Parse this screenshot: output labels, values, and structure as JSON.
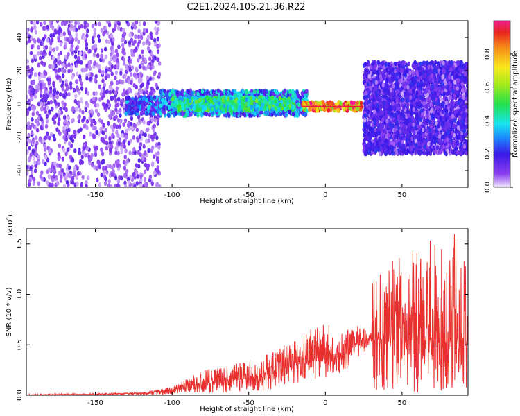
{
  "title": "C2E1.2024.105.21.36.R22",
  "chart_data": [
    {
      "type": "heatmap",
      "xlabel": "Height of straight line (km)",
      "ylabel": "Frequency (Hz)",
      "xlim": [
        -195,
        93
      ],
      "ylim": [
        -50,
        50
      ],
      "xticks": [
        -150,
        -100,
        -50,
        0,
        50
      ],
      "yticks": [
        -40,
        -20,
        0,
        20,
        40
      ],
      "colorbar": {
        "label": "Normalized spectral amplitude",
        "range": [
          0,
          1
        ],
        "ticks": [
          0.0,
          0.2,
          0.4,
          0.6,
          0.8
        ],
        "tick_labels": [
          "0.0",
          "0.2",
          "0.4",
          "0.6",
          "0.8"
        ]
      },
      "regions": [
        {
          "x": [
            -195,
            -108
          ],
          "freq_band": [
            -50,
            50
          ],
          "amplitude": 0.12
        },
        {
          "x": [
            -130,
            -108
          ],
          "freq_band": [
            -6,
            4
          ],
          "amplitude": 0.3
        },
        {
          "x": [
            -108,
            -12
          ],
          "freq_band": [
            -7,
            8
          ],
          "amplitude": 0.35
        },
        {
          "x": [
            -100,
            -20
          ],
          "freq_band": [
            -4,
            4
          ],
          "amplitude": 0.5
        },
        {
          "x": [
            -15,
            25
          ],
          "freq_band": [
            -4,
            1
          ],
          "amplitude": 0.9
        },
        {
          "x": [
            25,
            93
          ],
          "freq_band": [
            -30,
            25
          ],
          "amplitude": 0.2
        }
      ]
    },
    {
      "type": "line",
      "xlabel": "Height of straight line (km)",
      "ylabel": "SNR (10 * v/v)",
      "y_multiplier": "(x10",
      "y_multiplier_exp": "4",
      "y_multiplier_close": ")",
      "xlim": [
        -195,
        93
      ],
      "ylim": [
        0,
        1.65
      ],
      "xticks": [
        -150,
        -100,
        -50,
        0,
        50
      ],
      "yticks": [
        0.0,
        0.5,
        1.0,
        1.5
      ],
      "ytick_labels": [
        "0.0",
        "0.5",
        "1.0",
        "1.5"
      ],
      "series": [
        {
          "color": "#e8302e",
          "x": [
            -195,
            -150,
            -120,
            -100,
            -80,
            -60,
            -40,
            -20,
            -10,
            0,
            10,
            20,
            30,
            31,
            50,
            70,
            85,
            93
          ],
          "y": [
            0.0,
            0.01,
            0.02,
            0.05,
            0.13,
            0.15,
            0.18,
            0.3,
            0.38,
            0.35,
            0.38,
            0.5,
            0.58,
            0.55,
            0.55,
            0.55,
            0.55,
            0.55
          ],
          "envelope_max": [
            0.01,
            0.02,
            0.03,
            0.08,
            0.25,
            0.3,
            0.4,
            0.55,
            0.65,
            0.75,
            0.6,
            0.7,
            0.65,
            1.2,
            1.5,
            1.55,
            1.65,
            1.4
          ],
          "envelope_min": [
            0.0,
            0.0,
            0.0,
            0.0,
            0.02,
            0.03,
            0.05,
            0.08,
            0.12,
            0.15,
            0.2,
            0.35,
            0.5,
            0.05,
            0.03,
            0.03,
            0.03,
            0.05
          ]
        }
      ]
    }
  ]
}
